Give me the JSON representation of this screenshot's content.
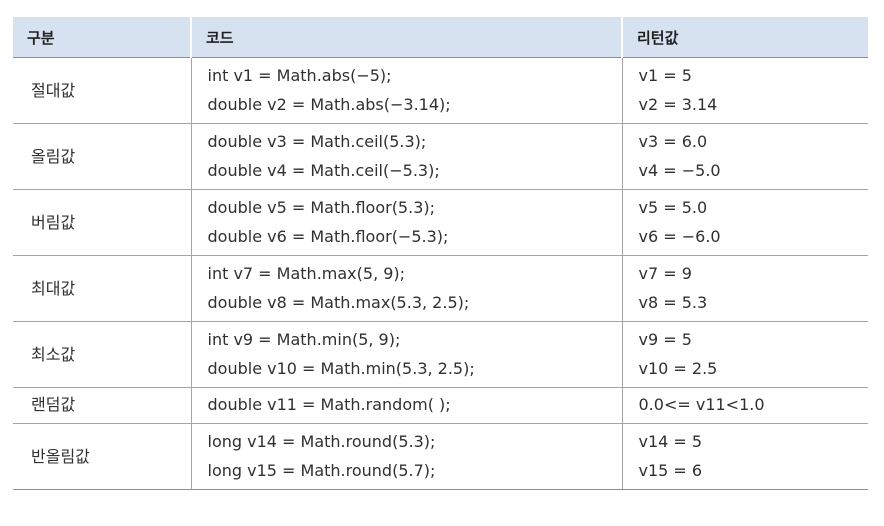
{
  "header": {
    "col_category": "구분",
    "col_code": "코드",
    "col_return": "리턴값"
  },
  "rows": [
    {
      "category": "절대값",
      "code": [
        "int v1 = Math.abs(−5);",
        "double v2 = Math.abs(−3.14);"
      ],
      "ret": [
        "v1 = 5",
        "v2 = 3.14"
      ]
    },
    {
      "category": "올림값",
      "code": [
        "double v3 = Math.ceil(5.3);",
        "double v4 = Math.ceil(−5.3);"
      ],
      "ret": [
        "v3 = 6.0",
        "v4 = −5.0"
      ]
    },
    {
      "category": "버림값",
      "code": [
        "double v5 = Math.floor(5.3);",
        "double v6 = Math.floor(−5.3);"
      ],
      "ret": [
        "v5 = 5.0",
        "v6 = −6.0"
      ]
    },
    {
      "category": "최대값",
      "code": [
        "int v7 = Math.max(5, 9);",
        "double v8 = Math.max(5.3, 2.5);"
      ],
      "ret": [
        "v7 = 9",
        "v8 = 5.3"
      ]
    },
    {
      "category": "최소값",
      "code": [
        "int v9 = Math.min(5, 9);",
        "double v10 = Math.min(5.3, 2.5);"
      ],
      "ret": [
        "v9 = 5",
        "v10 = 2.5"
      ]
    },
    {
      "category": "랜덤값",
      "code": [
        "double v11 = Math.random( );"
      ],
      "ret": [
        "0.0<= v11<1.0"
      ]
    },
    {
      "category": "반올림값",
      "code": [
        "long v14 = Math.round(5.3);",
        "long v15 = Math.round(5.7);"
      ],
      "ret": [
        "v14 = 5",
        "v15 = 6"
      ]
    }
  ]
}
